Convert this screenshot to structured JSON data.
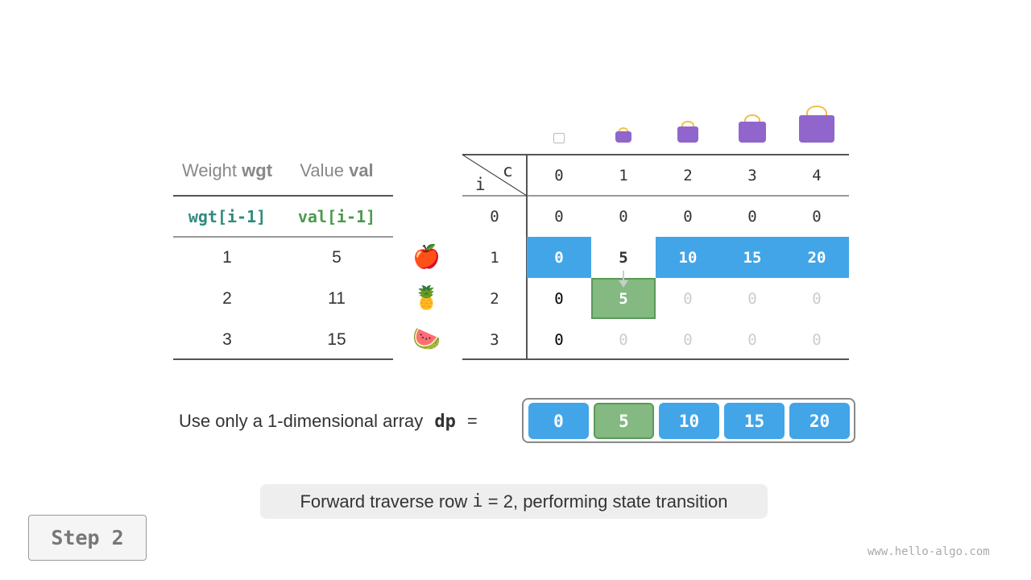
{
  "items_table": {
    "headers": [
      {
        "text": "Weight ",
        "bold": "wgt"
      },
      {
        "text": "Value ",
        "bold": "val"
      }
    ],
    "subheaders": [
      "wgt[i-1]",
      "val[i-1]"
    ],
    "rows": [
      {
        "wgt": "1",
        "val": "5",
        "icon": "apple-icon"
      },
      {
        "wgt": "2",
        "val": "11",
        "icon": "pineapple-icon"
      },
      {
        "wgt": "3",
        "val": "15",
        "icon": "watermelon-icon"
      }
    ],
    "colors": {
      "wgt": "#2e8b7e",
      "val": "#4a9a4e"
    }
  },
  "dp_table": {
    "corner_row": "i",
    "corner_col": "c",
    "capacities": [
      "0",
      "1",
      "2",
      "3",
      "4"
    ],
    "row_labels": [
      "0",
      "1",
      "2",
      "3"
    ],
    "cells": [
      [
        "0",
        "0",
        "0",
        "0",
        "0"
      ],
      [
        "0",
        "5",
        "10",
        "15",
        "20"
      ],
      [
        "0",
        "5",
        "0",
        "0",
        "0"
      ],
      [
        "0",
        "0",
        "0",
        "0",
        "0"
      ]
    ],
    "highlight_row": 1,
    "current_cell": [
      2,
      1
    ],
    "colors": {
      "highlight": "#42a5e8",
      "current": "#84b982",
      "faded": "#cccccc"
    }
  },
  "dp_array": {
    "label": "Use only a 1-dimensional array ",
    "name": "dp",
    "eq": "=",
    "values": [
      "0",
      "5",
      "10",
      "15",
      "20"
    ],
    "current_index": 1
  },
  "caption": {
    "before": "Forward traverse row ",
    "code": "i",
    "after": " = 2, performing state transition"
  },
  "step_button": "Step 2",
  "watermark": "www.hello-algo.com"
}
